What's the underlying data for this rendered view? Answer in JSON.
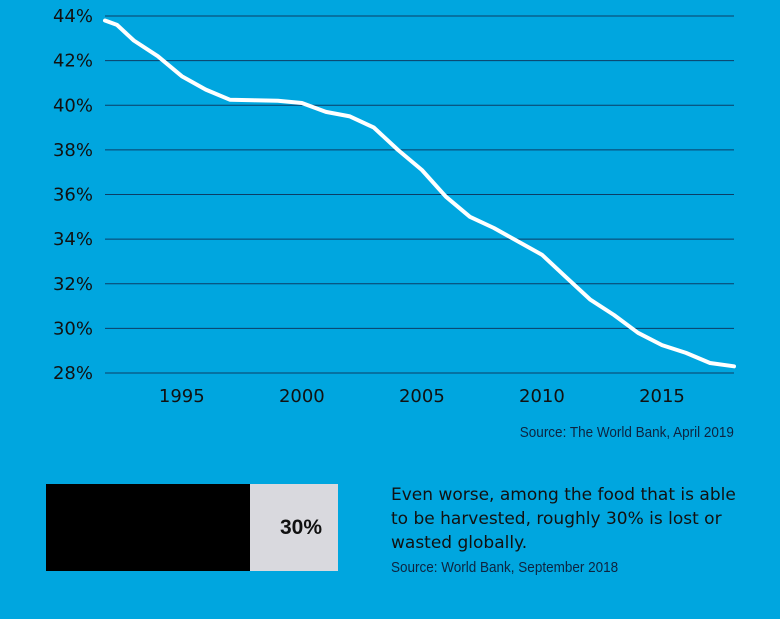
{
  "chart_data": {
    "type": "line",
    "title": "",
    "xlabel": "",
    "ylabel": "",
    "xlim": [
      1991.8,
      2018
    ],
    "ylim": [
      28,
      44
    ],
    "x_ticks": [
      1995,
      2000,
      2005,
      2010,
      2015
    ],
    "x_tick_labels": [
      "1995",
      "2000",
      "2005",
      "2010",
      "2015"
    ],
    "y_ticks": [
      28,
      30,
      32,
      34,
      36,
      38,
      40,
      42,
      44
    ],
    "y_tick_labels": [
      "28%",
      "30%",
      "32%",
      "34%",
      "36%",
      "38%",
      "40%",
      "42%",
      "44%"
    ],
    "grid": "horizontal",
    "series": [
      {
        "x": [
          1991.8,
          1992.3,
          1993,
          1994,
          1995,
          1996,
          1997,
          1998,
          1999,
          2000,
          2001,
          2002,
          2003,
          2004,
          2005,
          2006,
          2007,
          2008,
          2009,
          2010,
          2011,
          2012,
          2013,
          2014,
          2015,
          2016,
          2017,
          2018
        ],
        "y": [
          43.8,
          43.6,
          42.9,
          42.2,
          41.3,
          40.7,
          40.25,
          40.22,
          40.2,
          40.1,
          39.7,
          39.5,
          39.0,
          38.0,
          37.1,
          35.9,
          35.0,
          34.5,
          33.9,
          33.3,
          32.3,
          31.3,
          30.6,
          29.8,
          29.25,
          28.9,
          28.45,
          28.3
        ]
      }
    ],
    "line_color": "#ffffff",
    "source": "Source: The World Bank, April 2019"
  },
  "bar": {
    "percent": 70,
    "label": "30%",
    "fill_color": "#000000",
    "rest_color": "#d9d9de"
  },
  "note": {
    "text": "Even worse, among the food that is able to be harvested, roughly 30% is lost or wasted globally.",
    "source": "Source: World Bank, September 2018"
  },
  "colors": {
    "background": "#00a6df",
    "gridline": "#0b3d66"
  }
}
